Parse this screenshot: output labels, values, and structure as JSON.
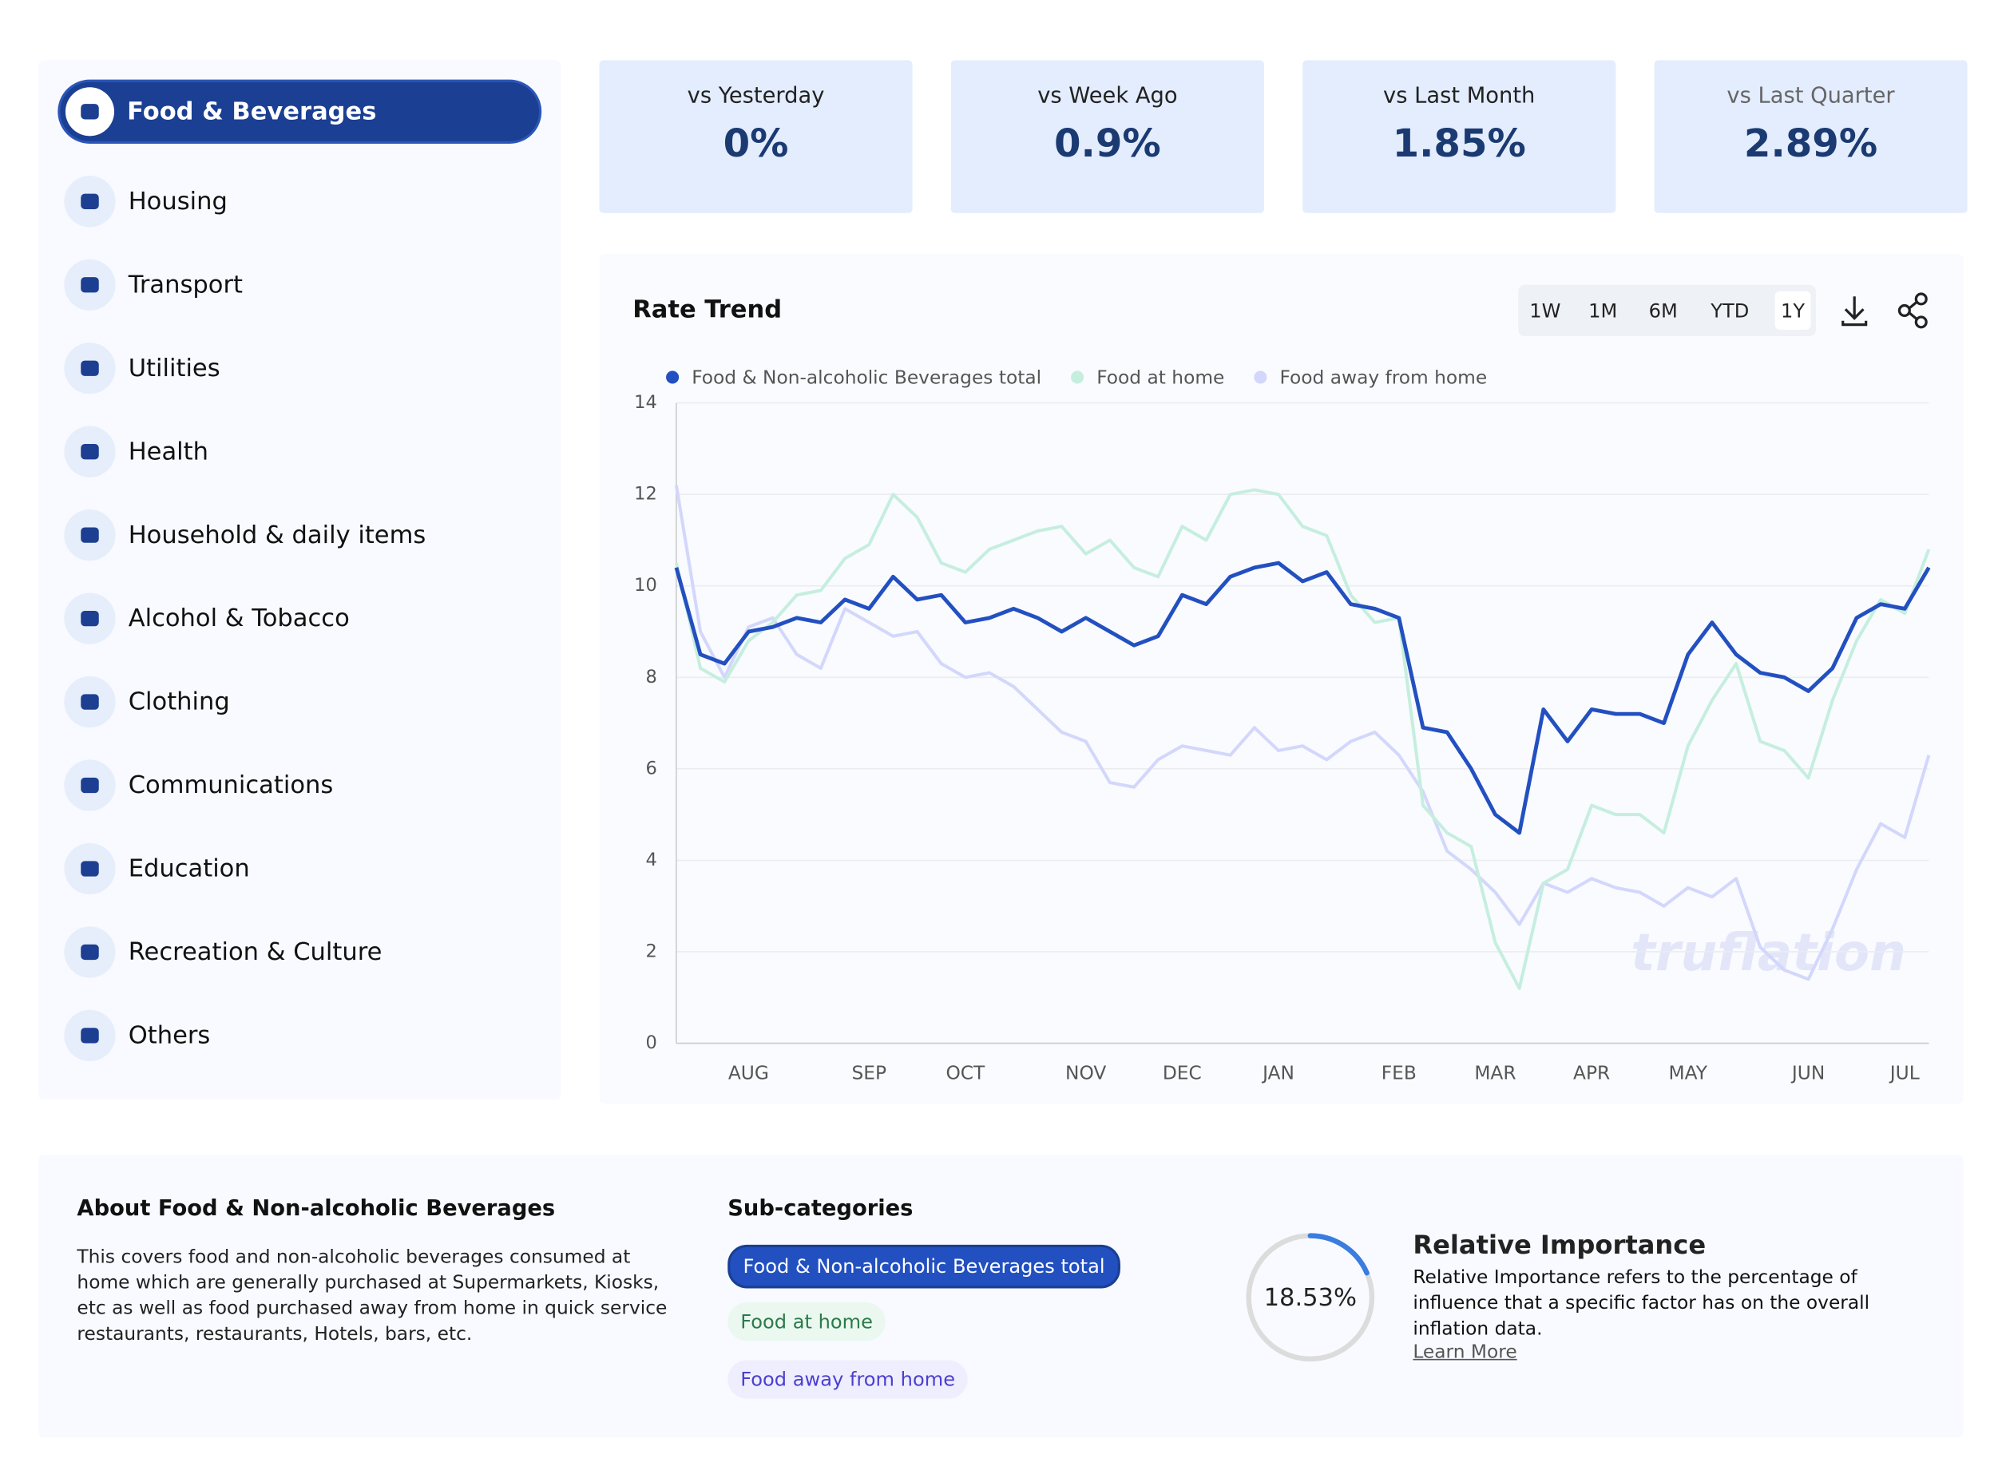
{
  "sidebar": {
    "selected": "Food & Beverages",
    "items": [
      "Housing",
      "Transport",
      "Utilities",
      "Health",
      "Household & daily items",
      "Alcohol & Tobacco",
      "Clothing",
      "Communications",
      "Education",
      "Recreation & Culture",
      "Others"
    ]
  },
  "kpis": [
    {
      "label": "vs Yesterday",
      "value": "0%"
    },
    {
      "label": "vs Week Ago",
      "value": "0.9%"
    },
    {
      "label": "vs Last Month",
      "value": "1.85%"
    },
    {
      "label": "vs Last Quarter",
      "value": "2.89%"
    }
  ],
  "range_buttons": [
    "1W",
    "1M",
    "6M",
    "YTD"
  ],
  "selected_range": "1Y",
  "chart_data": {
    "type": "line",
    "title": "Rate Trend",
    "watermark": "truflation",
    "categories": [
      null,
      null,
      null,
      "AUG",
      null,
      null,
      null,
      null,
      "SEP",
      null,
      null,
      null,
      "OCT",
      null,
      null,
      null,
      null,
      "NOV",
      null,
      null,
      null,
      "DEC",
      null,
      null,
      null,
      "JAN",
      null,
      null,
      null,
      null,
      "FEB",
      null,
      null,
      null,
      "MAR",
      null,
      null,
      null,
      "APR",
      null,
      null,
      null,
      "MAY",
      null,
      null,
      null,
      null,
      "JUN",
      null,
      null,
      null,
      "JUL",
      null
    ],
    "series": [
      {
        "name": "Food & Non-alcoholic Beverages total",
        "color": "#2350c0",
        "width": 3,
        "values": [
          10.4,
          8.5,
          8.3,
          9.0,
          9.1,
          9.3,
          9.2,
          9.7,
          9.5,
          10.2,
          9.7,
          9.8,
          9.2,
          9.3,
          9.5,
          9.3,
          9.0,
          9.3,
          9.0,
          8.7,
          8.9,
          9.8,
          9.6,
          10.2,
          10.4,
          10.5,
          10.1,
          10.3,
          9.6,
          9.5,
          9.3,
          6.9,
          6.8,
          6.0,
          5.0,
          4.6,
          7.3,
          6.6,
          7.3,
          7.2,
          7.2,
          7.0,
          8.5,
          9.2,
          8.5,
          8.1,
          8.0,
          7.7,
          8.2,
          9.3,
          9.6,
          9.5,
          10.4
        ]
      },
      {
        "name": "Food at home",
        "color": "#c6eedf",
        "width": 2.5,
        "values": [
          10.5,
          8.2,
          7.9,
          8.8,
          9.2,
          9.8,
          9.9,
          10.6,
          10.9,
          12.0,
          11.5,
          10.5,
          10.3,
          10.8,
          11.0,
          11.2,
          11.3,
          10.7,
          11.0,
          10.4,
          10.2,
          11.3,
          11.0,
          12.0,
          12.1,
          12.0,
          11.3,
          11.1,
          9.8,
          9.2,
          9.3,
          5.2,
          4.6,
          4.3,
          2.2,
          1.2,
          3.5,
          3.8,
          5.2,
          5.0,
          5.0,
          4.6,
          6.5,
          7.5,
          8.3,
          6.6,
          6.4,
          5.8,
          7.5,
          8.8,
          9.7,
          9.4,
          10.8
        ]
      },
      {
        "name": "Food away from home",
        "color": "#d3d7fb",
        "width": 2.5,
        "values": [
          12.2,
          9.0,
          8.0,
          9.1,
          9.3,
          8.5,
          8.2,
          9.5,
          9.2,
          8.9,
          9.0,
          8.3,
          8.0,
          8.1,
          7.8,
          7.3,
          6.8,
          6.6,
          5.7,
          5.6,
          6.2,
          6.5,
          6.4,
          6.3,
          6.9,
          6.4,
          6.5,
          6.2,
          6.6,
          6.8,
          6.3,
          5.5,
          4.2,
          3.8,
          3.3,
          2.6,
          3.5,
          3.3,
          3.6,
          3.4,
          3.3,
          3.0,
          3.4,
          3.2,
          3.6,
          2.1,
          1.6,
          1.4,
          2.5,
          3.8,
          4.8,
          4.5,
          6.3
        ]
      }
    ],
    "ylim": [
      0,
      14
    ],
    "yticks": [
      0,
      2,
      4,
      6,
      8,
      10,
      12,
      14
    ],
    "grid": true,
    "legend": "top"
  },
  "about": {
    "title": "About Food & Non-alcoholic Beverages",
    "text": "This covers food and non-alcoholic beverages consumed at home which are generally purchased at Supermarkets, Kiosks, etc as well as food purchased away from home in quick service restaurants, restaurants, Hotels, bars, etc."
  },
  "subcategories": {
    "title": "Sub-categories",
    "items": [
      "Food & Non-alcoholic Beverages total",
      "Food at home",
      "Food away from home"
    ]
  },
  "relative_importance": {
    "value": 18.53,
    "label": "18.53%",
    "title": "Relative Importance",
    "text": "Relative Importance refers to the percentage of influence that a specific factor has on the overall inflation data.",
    "link": "Learn More"
  }
}
